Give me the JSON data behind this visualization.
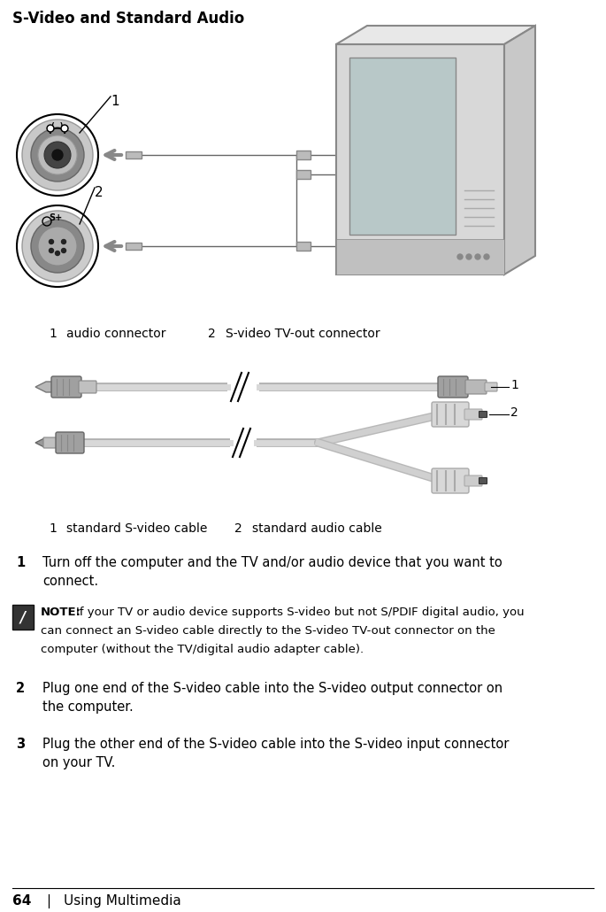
{
  "page_title": "S-Video and Standard Audio",
  "background_color": "#ffffff",
  "text_color": "#000000",
  "page_number": "64",
  "page_label": "Using Multimedia",
  "caption1_num": "1",
  "caption1_text": "audio connector",
  "caption2_num": "2",
  "caption2_text": "S-video TV-out connector",
  "caption3_num": "1",
  "caption3_text": "standard S-video cable",
  "caption4_num": "2",
  "caption4_text": "standard audio cable",
  "step1_num": "1",
  "step1_text_line1": "Turn off the computer and the TV and/or audio device that you want to",
  "step1_text_line2": "connect.",
  "note_label": "NOTE:",
  "note_line1": "If your TV or audio device supports S-video but not S/PDIF digital audio, you",
  "note_line2": "can connect an S-video cable directly to the S-video TV-out connector on the",
  "note_line3": "computer (without the TV/digital audio adapter cable).",
  "step2_num": "2",
  "step2_text_line1": "Plug one end of the S-video cable into the S-video output connector on",
  "step2_text_line2": "the computer.",
  "step3_num": "3",
  "step3_text_line1": "Plug the other end of the S-video cable into the S-video input connector",
  "step3_text_line2": "on your TV.",
  "gray_light": "#d4d4d4",
  "gray_mid": "#aaaaaa",
  "gray_dark": "#888888",
  "gray_darker": "#555555",
  "black": "#000000",
  "white": "#ffffff"
}
